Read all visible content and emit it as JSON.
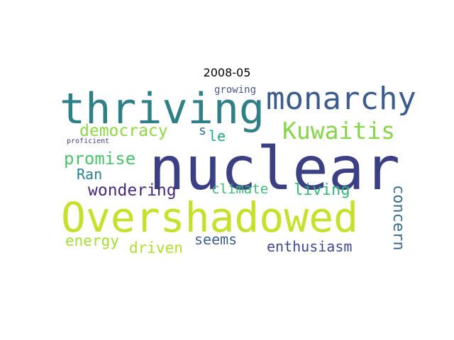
{
  "title": "2008-05",
  "words": [
    {
      "text": "nuclear",
      "color": "#3b3f84"
    },
    {
      "text": "thriving",
      "color": "#2e7f86"
    },
    {
      "text": "monarchy",
      "color": "#3d5c8e"
    },
    {
      "text": "Overshadowed",
      "color": "#c6e02b"
    },
    {
      "text": "Kuwaitis",
      "color": "#86d549"
    },
    {
      "text": "democracy",
      "color": "#8fd744"
    },
    {
      "text": "promise",
      "color": "#4cc26c"
    },
    {
      "text": "Ran",
      "color": "#26828e"
    },
    {
      "text": "wondering",
      "color": "#482878"
    },
    {
      "text": "climate",
      "color": "#3cbb75"
    },
    {
      "text": "living",
      "color": "#35b779"
    },
    {
      "text": "concern",
      "color": "#3e6e8e"
    },
    {
      "text": "energy",
      "color": "#a5db36"
    },
    {
      "text": "driven",
      "color": "#b0dd2f"
    },
    {
      "text": "seems",
      "color": "#3e5f8e"
    },
    {
      "text": "enthusiasm",
      "color": "#404a89"
    },
    {
      "text": "growing",
      "color": "#46588b"
    },
    {
      "text": "proficient",
      "color": "#423f85"
    },
    {
      "text": "s",
      "color": "#2f6f8e"
    },
    {
      "text": "le",
      "color": "#21a685"
    }
  ]
}
